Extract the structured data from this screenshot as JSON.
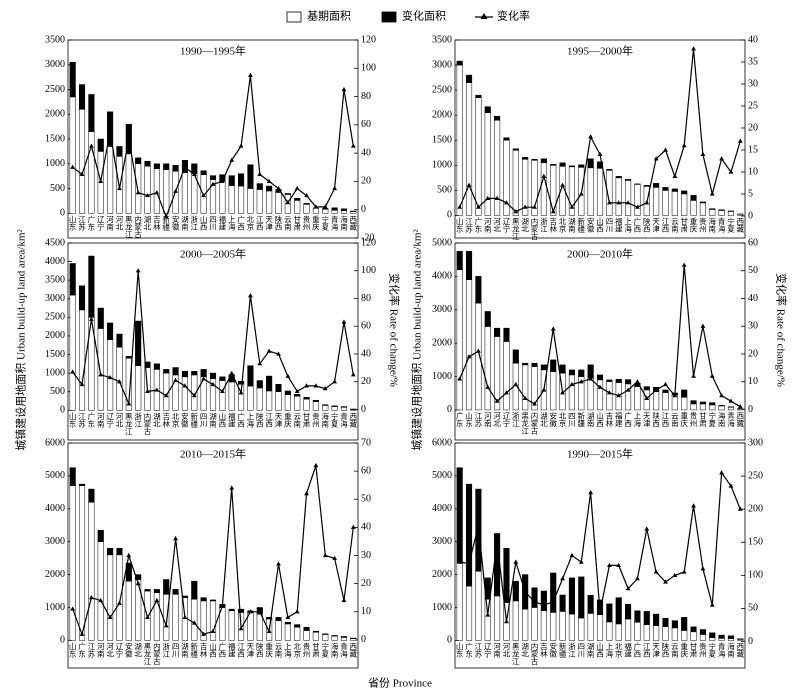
{
  "x_label": "省份 Province",
  "y_label": "城镇建设用地面积 Urban build-up land area/km²",
  "y2_label": "变化率 Rate of change/%",
  "chart_data": [
    {
      "type": "bar",
      "title": "1990—1995年",
      "categories": [
        "山东",
        "江苏",
        "广东",
        "辽宁",
        "河南",
        "河北",
        "黑龙江",
        "内蒙古",
        "湖北",
        "吉林",
        "新疆",
        "安徽",
        "湖南",
        "浙江",
        "山西",
        "四川",
        "福建",
        "上海",
        "广西",
        "北京",
        "江西",
        "天津",
        "陕西",
        "云南",
        "甘肃",
        "贵州",
        "重庆",
        "宁夏",
        "青海",
        "海南",
        "西藏"
      ],
      "series": [
        {
          "name": "基期面积",
          "color": "#ffffff",
          "values": [
            2350,
            2100,
            1650,
            1250,
            1350,
            1150,
            1200,
            1000,
            950,
            900,
            880,
            850,
            820,
            800,
            780,
            680,
            650,
            560,
            550,
            500,
            480,
            450,
            420,
            380,
            260,
            180,
            100,
            80,
            60,
            50,
            30
          ]
        },
        {
          "name": "变化面积",
          "color": "#000000",
          "values": [
            700,
            500,
            750,
            250,
            700,
            200,
            600,
            120,
            100,
            100,
            120,
            120,
            250,
            200,
            80,
            80,
            130,
            200,
            250,
            480,
            120,
            100,
            60,
            20,
            40,
            20,
            5,
            15,
            50,
            40,
            15
          ]
        },
        {
          "name": "变化率",
          "color": "#000000",
          "axis": "y2",
          "values": [
            30,
            25,
            45,
            20,
            55,
            15,
            50,
            12,
            10,
            12,
            -5,
            13,
            30,
            25,
            10,
            18,
            20,
            35,
            45,
            95,
            25,
            20,
            15,
            5,
            15,
            10,
            2,
            2,
            15,
            85,
            45
          ]
        }
      ],
      "ylim": [
        -500,
        3500
      ],
      "yticks": [
        0,
        500,
        1000,
        1500,
        2000,
        2500,
        3000,
        3500
      ],
      "y2lim": [
        -20,
        120
      ],
      "y2ticks": [
        -20,
        0,
        20,
        40,
        60,
        80,
        100,
        120
      ]
    },
    {
      "type": "bar",
      "title": "1995—2000年",
      "categories": [
        "山东",
        "江苏",
        "广东",
        "河南",
        "河北",
        "辽宁",
        "黑龙江",
        "湖北",
        "内蒙古",
        "浙江",
        "吉林",
        "北京",
        "湖南",
        "新疆",
        "安徽",
        "山西",
        "四川",
        "福建",
        "上海",
        "广西",
        "陕西",
        "天津",
        "江西",
        "云南",
        "甘肃",
        "重庆",
        "贵州",
        "海南",
        "青海",
        "宁夏",
        "西藏"
      ],
      "series": [
        {
          "name": "基期面积",
          "color": "#ffffff",
          "values": [
            3000,
            2650,
            2350,
            2050,
            1900,
            1500,
            1300,
            1120,
            1100,
            1050,
            1000,
            980,
            970,
            960,
            950,
            940,
            900,
            750,
            700,
            620,
            580,
            560,
            500,
            480,
            430,
            300,
            250,
            120,
            100,
            80,
            25
          ]
        },
        {
          "name": "变化面积",
          "color": "#000000",
          "values": [
            80,
            150,
            50,
            120,
            80,
            50,
            30,
            40,
            20,
            80,
            20,
            70,
            20,
            50,
            180,
            130,
            20,
            30,
            20,
            10,
            20,
            80,
            60,
            50,
            60,
            100,
            20,
            15,
            15,
            10,
            5
          ]
        },
        {
          "name": "变化率",
          "color": "#000000",
          "axis": "y2",
          "values": [
            2,
            7,
            2,
            4,
            4,
            3,
            1,
            2,
            2,
            9,
            1,
            7,
            2,
            5,
            18,
            14,
            3,
            3,
            3,
            2,
            3,
            13,
            15,
            9,
            16,
            38,
            14,
            5,
            13,
            10,
            17
          ]
        }
      ],
      "ylim": [
        -450,
        3500
      ],
      "yticks": [
        0,
        500,
        1000,
        1500,
        2000,
        2500,
        3000,
        3500
      ],
      "y2lim": [
        -5,
        40
      ],
      "y2ticks": [
        0,
        5,
        10,
        15,
        20,
        25,
        30,
        35,
        40
      ]
    },
    {
      "type": "bar",
      "title": "2000—2005年",
      "categories": [
        "山东",
        "江苏",
        "广东",
        "河南",
        "辽宁",
        "河北",
        "黑龙江",
        "浙江",
        "内蒙古",
        "湖北",
        "吉林",
        "北京",
        "安徽",
        "新疆",
        "四川",
        "湖南",
        "山西",
        "福建",
        "广西",
        "上海",
        "陕西",
        "江西",
        "天津",
        "重庆",
        "云南",
        "甘肃",
        "贵州",
        "海南",
        "宁夏",
        "青海",
        "西藏"
      ],
      "series": [
        {
          "name": "基期面积",
          "color": "#ffffff",
          "values": [
            3100,
            2700,
            2500,
            2200,
            1900,
            1700,
            1400,
            1200,
            1150,
            1100,
            1000,
            950,
            900,
            950,
            900,
            850,
            800,
            760,
            700,
            650,
            600,
            520,
            500,
            420,
            380,
            300,
            230,
            130,
            100,
            80,
            20
          ]
        },
        {
          "name": "变化面积",
          "color": "#000000",
          "values": [
            850,
            650,
            1650,
            550,
            450,
            350,
            50,
            1200,
            150,
            150,
            100,
            200,
            150,
            100,
            200,
            150,
            100,
            200,
            80,
            550,
            200,
            400,
            200,
            100,
            50,
            50,
            40,
            20,
            20,
            20,
            15
          ]
        },
        {
          "name": "变化率",
          "color": "#000000",
          "axis": "y2",
          "values": [
            27,
            18,
            65,
            25,
            23,
            20,
            4,
            100,
            13,
            14,
            10,
            21,
            17,
            10,
            22,
            18,
            13,
            26,
            12,
            82,
            33,
            42,
            40,
            24,
            13,
            17,
            17,
            15,
            20,
            63,
            25
          ]
        }
      ],
      "ylim": [
        -800,
        4500
      ],
      "yticks": [
        0,
        500,
        1000,
        1500,
        2000,
        2500,
        3000,
        3500,
        4000,
        4500
      ],
      "y2lim": [
        -22,
        120
      ],
      "y2ticks": [
        0,
        20,
        40,
        60,
        80,
        100,
        120
      ]
    },
    {
      "type": "bar",
      "title": "2000—2010年",
      "categories": [
        "广东",
        "山东",
        "江苏",
        "河南",
        "河北",
        "辽宁",
        "浙江",
        "黑龙江",
        "内蒙古",
        "湖北",
        "安徽",
        "北京",
        "四川",
        "新疆",
        "湖南",
        "山西",
        "吉林",
        "福建",
        "广西",
        "上海",
        "天津",
        "陕西",
        "江西",
        "云南",
        "重庆",
        "贵州",
        "甘肃",
        "宁夏",
        "海南",
        "青海",
        "西藏"
      ],
      "series": [
        {
          "name": "基期面积",
          "color": "#ffffff",
          "values": [
            4200,
            3900,
            3200,
            2500,
            2200,
            2050,
            1400,
            1350,
            1300,
            1200,
            1150,
            1100,
            1050,
            1000,
            950,
            900,
            850,
            820,
            780,
            700,
            600,
            550,
            520,
            450,
            380,
            180,
            180,
            150,
            120,
            80,
            30
          ]
        },
        {
          "name": "变化面积",
          "color": "#000000",
          "values": [
            550,
            850,
            800,
            450,
            250,
            400,
            400,
            50,
            100,
            150,
            350,
            250,
            150,
            200,
            400,
            150,
            50,
            100,
            130,
            100,
            100,
            130,
            80,
            60,
            220,
            100,
            60,
            70,
            20,
            15,
            10
          ]
        },
        {
          "name": "变化率",
          "color": "#000000",
          "axis": "y2",
          "values": [
            11,
            19,
            21,
            8,
            3,
            6,
            9,
            4,
            2,
            7,
            29,
            6,
            9,
            10,
            11,
            8,
            6,
            5,
            7,
            10,
            4,
            7,
            9,
            5,
            52,
            12,
            30,
            12,
            5,
            3,
            1
          ]
        }
      ],
      "ylim": [
        -900,
        5000
      ],
      "yticks": [
        0,
        1000,
        2000,
        3000,
        4000,
        5000
      ],
      "y2lim": [
        -11,
        60
      ],
      "y2ticks": [
        0,
        10,
        20,
        30,
        40,
        50,
        60
      ]
    },
    {
      "type": "bar",
      "title": "2010—2015年",
      "categories": [
        "山东",
        "广东",
        "江苏",
        "河南",
        "河北",
        "辽宁",
        "安徽",
        "湖北",
        "黑龙江",
        "内蒙古",
        "浙江",
        "四川",
        "湖南",
        "新疆",
        "吉林",
        "山西",
        "广西",
        "福建",
        "江西",
        "天津",
        "陕西",
        "重庆",
        "云南",
        "上海",
        "北京",
        "贵州",
        "甘肃",
        "宁夏",
        "海南",
        "青海",
        "西藏"
      ],
      "series": [
        {
          "name": "基期面积",
          "color": "#ffffff",
          "values": [
            4700,
            4700,
            4200,
            3000,
            2600,
            2600,
            1800,
            1850,
            1500,
            1450,
            1400,
            1400,
            1300,
            1250,
            1200,
            1200,
            1000,
            900,
            850,
            850,
            800,
            650,
            600,
            500,
            400,
            300,
            250,
            180,
            130,
            90,
            50
          ]
        },
        {
          "name": "变化面积",
          "color": "#000000",
          "values": [
            550,
            50,
            400,
            350,
            200,
            200,
            550,
            150,
            50,
            100,
            450,
            150,
            50,
            550,
            100,
            30,
            100,
            50,
            100,
            50,
            200,
            50,
            100,
            50,
            80,
            100,
            30,
            20,
            20,
            30,
            20
          ]
        },
        {
          "name": "变化率",
          "color": "#000000",
          "axis": "y2",
          "values": [
            11,
            2,
            15,
            14,
            8,
            13,
            30,
            20,
            8,
            14,
            5,
            36,
            8,
            6,
            2,
            3,
            12,
            54,
            4,
            10,
            10,
            3,
            27,
            8,
            10,
            52,
            62,
            30,
            29,
            14,
            40
          ]
        }
      ],
      "ylim": [
        -840,
        6000
      ],
      "yticks": [
        0,
        1000,
        2000,
        3000,
        4000,
        5000,
        6000
      ],
      "y2lim": [
        -10,
        70
      ],
      "y2ticks": [
        0,
        10,
        20,
        30,
        40,
        50,
        60,
        70
      ]
    },
    {
      "type": "bar",
      "title": "1990—2015年",
      "categories": [
        "山东",
        "广东",
        "江苏",
        "辽宁",
        "河南",
        "河北",
        "黑龙江",
        "湖北",
        "内蒙古",
        "吉林",
        "安徽",
        "新疆",
        "浙江",
        "四川",
        "湖南",
        "山西",
        "上海",
        "北京",
        "福建",
        "广西",
        "江西",
        "天津",
        "陕西",
        "云南",
        "重庆",
        "甘肃",
        "贵州",
        "宁夏",
        "青海",
        "海南",
        "西藏"
      ],
      "series": [
        {
          "name": "基期面积",
          "color": "#ffffff",
          "values": [
            2350,
            1650,
            2100,
            1250,
            1350,
            1150,
            1200,
            950,
            1000,
            900,
            850,
            880,
            800,
            680,
            820,
            780,
            560,
            500,
            650,
            550,
            480,
            450,
            420,
            380,
            300,
            260,
            180,
            80,
            60,
            50,
            30
          ]
        },
        {
          "name": "变化面积",
          "color": "#000000",
          "values": [
            2900,
            3100,
            2500,
            650,
            1900,
            1650,
            600,
            1050,
            600,
            600,
            1200,
            500,
            1100,
            1250,
            550,
            450,
            550,
            800,
            450,
            350,
            400,
            350,
            250,
            220,
            400,
            150,
            150,
            150,
            100,
            90,
            20
          ]
        },
        {
          "name": "变化率",
          "color": "#000000",
          "axis": "y2",
          "values": [
            120,
            118,
            175,
            40,
            150,
            30,
            120,
            75,
            60,
            55,
            60,
            95,
            130,
            120,
            225,
            45,
            115,
            115,
            80,
            95,
            170,
            105,
            90,
            100,
            105,
            205,
            110,
            55,
            255,
            235,
            200
          ]
        }
      ],
      "ylim": [
        -840,
        6000
      ],
      "yticks": [
        0,
        1000,
        2000,
        3000,
        4000,
        5000,
        6000
      ],
      "y2lim": [
        -40,
        300
      ],
      "y2ticks": [
        0,
        50,
        100,
        150,
        200,
        250,
        300
      ]
    }
  ]
}
